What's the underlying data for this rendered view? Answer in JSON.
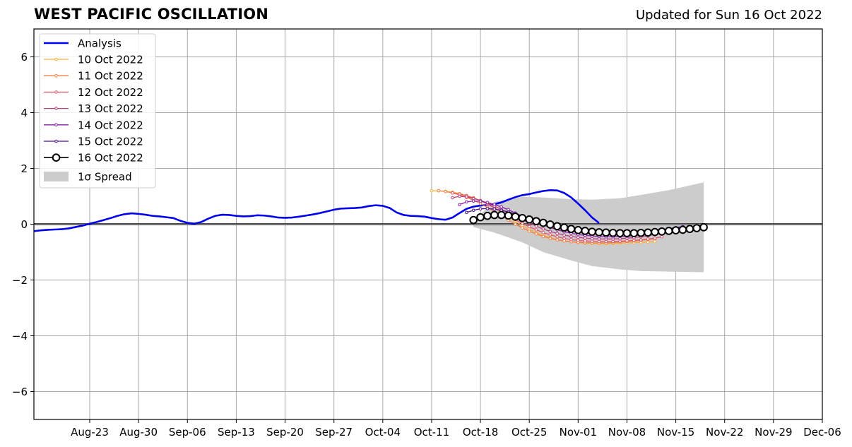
{
  "chart_data": {
    "type": "line",
    "title": "WEST PACIFIC OSCILLATION",
    "subtitle": "Updated for Sun 16 Oct 2022",
    "xlabel": "",
    "ylabel": "",
    "ylim": [
      -7,
      7
    ],
    "yticks": [
      -6,
      -4,
      -2,
      0,
      2,
      4,
      6
    ],
    "ytick_labels": [
      "−6",
      "−4",
      "−2",
      "0",
      "2",
      "4",
      "6"
    ],
    "xlim": [
      "2022-08-15",
      "2022-12-06"
    ],
    "xticks": [
      "2022-08-23",
      "2022-08-30",
      "2022-09-06",
      "2022-09-13",
      "2022-09-20",
      "2022-09-27",
      "2022-10-04",
      "2022-10-11",
      "2022-10-18",
      "2022-10-25",
      "2022-11-01",
      "2022-11-08",
      "2022-11-15",
      "2022-11-22",
      "2022-11-29",
      "2022-12-06"
    ],
    "xtick_labels": [
      "Aug-23",
      "Aug-30",
      "Sep-06",
      "Sep-13",
      "Sep-20",
      "Sep-27",
      "Oct-04",
      "Oct-11",
      "Oct-18",
      "Oct-25",
      "Nov-01",
      "Nov-08",
      "Nov-15",
      "Nov-22",
      "Nov-29",
      "Dec-06"
    ],
    "grid": true,
    "legend_position": "top-left",
    "analysis": {
      "name": "Analysis",
      "color": "#0000ee",
      "start": "2022-08-15",
      "values": [
        -0.25,
        -0.22,
        -0.2,
        -0.19,
        -0.18,
        -0.15,
        -0.1,
        -0.05,
        0.02,
        0.08,
        0.15,
        0.22,
        0.3,
        0.36,
        0.39,
        0.37,
        0.34,
        0.3,
        0.28,
        0.25,
        0.22,
        0.12,
        0.05,
        0.02,
        0.08,
        0.2,
        0.3,
        0.34,
        0.33,
        0.3,
        0.28,
        0.29,
        0.32,
        0.31,
        0.28,
        0.24,
        0.23,
        0.24,
        0.27,
        0.31,
        0.35,
        0.4,
        0.46,
        0.52,
        0.56,
        0.57,
        0.58,
        0.6,
        0.65,
        0.68,
        0.66,
        0.58,
        0.42,
        0.33,
        0.3,
        0.29,
        0.27,
        0.22,
        0.18,
        0.16,
        0.24,
        0.4,
        0.55,
        0.63,
        0.67,
        0.69,
        0.72,
        0.78,
        0.88,
        0.97,
        1.04,
        1.08,
        1.14,
        1.19,
        1.22,
        1.21,
        1.12,
        0.96,
        0.74,
        0.5,
        0.24,
        0.04
      ]
    },
    "spread": {
      "name": "1σ Spread",
      "color": "#cccccc",
      "dates": [
        "2022-10-17",
        "2022-10-20",
        "2022-10-24",
        "2022-10-27",
        "2022-10-31",
        "2022-11-03",
        "2022-11-07",
        "2022-11-10",
        "2022-11-14",
        "2022-11-19"
      ],
      "upper": [
        0.15,
        0.8,
        0.98,
        0.96,
        0.9,
        0.88,
        0.93,
        1.05,
        1.22,
        1.5
      ],
      "lower": [
        -0.1,
        -0.3,
        -0.65,
        -1.0,
        -1.3,
        -1.5,
        -1.62,
        -1.68,
        -1.7,
        -1.72
      ]
    },
    "forecasts": [
      {
        "name": "10 Oct 2022",
        "color": "#f7b13a",
        "start": "2022-10-11",
        "values": [
          1.2,
          1.2,
          1.18,
          1.15,
          1.1,
          1.03,
          0.95,
          0.85,
          0.72,
          0.58,
          0.42,
          0.25,
          0.1,
          -0.05,
          -0.18,
          -0.3,
          -0.4,
          -0.48,
          -0.55,
          -0.6,
          -0.63,
          -0.66,
          -0.68,
          -0.69,
          -0.7,
          -0.7,
          -0.69,
          -0.68,
          -0.67,
          -0.66,
          -0.65,
          -0.64,
          -0.62
        ]
      },
      {
        "name": "11 Oct 2022",
        "color": "#f37d44",
        "start": "2022-10-12",
        "values": [
          1.2,
          1.17,
          1.12,
          1.05,
          0.96,
          0.86,
          0.74,
          0.6,
          0.45,
          0.3,
          0.15,
          0.0,
          -0.13,
          -0.25,
          -0.35,
          -0.44,
          -0.51,
          -0.56,
          -0.6,
          -0.63,
          -0.65,
          -0.66,
          -0.67,
          -0.67,
          -0.67,
          -0.66,
          -0.64,
          -0.62,
          -0.6,
          -0.58,
          -0.55,
          -0.52
        ]
      },
      {
        "name": "12 Oct 2022",
        "color": "#e0566c",
        "start": "2022-10-14",
        "values": [
          1.12,
          1.08,
          1.02,
          0.94,
          0.84,
          0.72,
          0.58,
          0.44,
          0.3,
          0.16,
          0.03,
          -0.09,
          -0.2,
          -0.3,
          -0.38,
          -0.45,
          -0.51,
          -0.55,
          -0.58,
          -0.6,
          -0.61,
          -0.62,
          -0.62,
          -0.62,
          -0.61,
          -0.6,
          -0.58,
          -0.56,
          -0.53,
          -0.5,
          -0.45
        ]
      },
      {
        "name": "13 Oct 2022",
        "color": "#b9407f",
        "start": "2022-10-14",
        "values": [
          0.95,
          1.0,
          0.98,
          0.92,
          0.85,
          0.76,
          0.65,
          0.53,
          0.4,
          0.28,
          0.16,
          0.04,
          -0.07,
          -0.17,
          -0.26,
          -0.33,
          -0.39,
          -0.44,
          -0.47,
          -0.5,
          -0.52,
          -0.53,
          -0.53,
          -0.53,
          -0.52,
          -0.5,
          -0.48,
          -0.45,
          -0.41,
          -0.37,
          -0.32,
          -0.27
        ]
      },
      {
        "name": "14 Oct 2022",
        "color": "#8a1ea8",
        "start": "2022-10-15",
        "values": [
          0.7,
          0.8,
          0.83,
          0.82,
          0.78,
          0.71,
          0.62,
          0.52,
          0.4,
          0.29,
          0.18,
          0.07,
          -0.03,
          -0.12,
          -0.2,
          -0.27,
          -0.32,
          -0.37,
          -0.4,
          -0.42,
          -0.44,
          -0.45,
          -0.45,
          -0.44,
          -0.43,
          -0.41,
          -0.38,
          -0.35,
          -0.31,
          -0.27,
          -0.22,
          -0.17
        ]
      },
      {
        "name": "15 Oct 2022",
        "color": "#4b0f8c",
        "start": "2022-10-16",
        "values": [
          0.42,
          0.5,
          0.55,
          0.56,
          0.54,
          0.5,
          0.44,
          0.37,
          0.29,
          0.2,
          0.12,
          0.03,
          -0.05,
          -0.12,
          -0.18,
          -0.23,
          -0.27,
          -0.3,
          -0.32,
          -0.34,
          -0.35,
          -0.35,
          -0.34,
          -0.33,
          -0.31,
          -0.29,
          -0.26,
          -0.23,
          -0.2,
          -0.16,
          -0.12,
          -0.08
        ]
      },
      {
        "name": "16 Oct 2022",
        "color": "#000000",
        "start": "2022-10-17",
        "values": [
          0.15,
          0.25,
          0.3,
          0.33,
          0.33,
          0.31,
          0.27,
          0.22,
          0.17,
          0.11,
          0.05,
          -0.01,
          -0.07,
          -0.12,
          -0.17,
          -0.21,
          -0.24,
          -0.27,
          -0.29,
          -0.3,
          -0.31,
          -0.32,
          -0.32,
          -0.32,
          -0.31,
          -0.3,
          -0.28,
          -0.26,
          -0.24,
          -0.22,
          -0.2,
          -0.17,
          -0.14,
          -0.11
        ]
      }
    ]
  }
}
